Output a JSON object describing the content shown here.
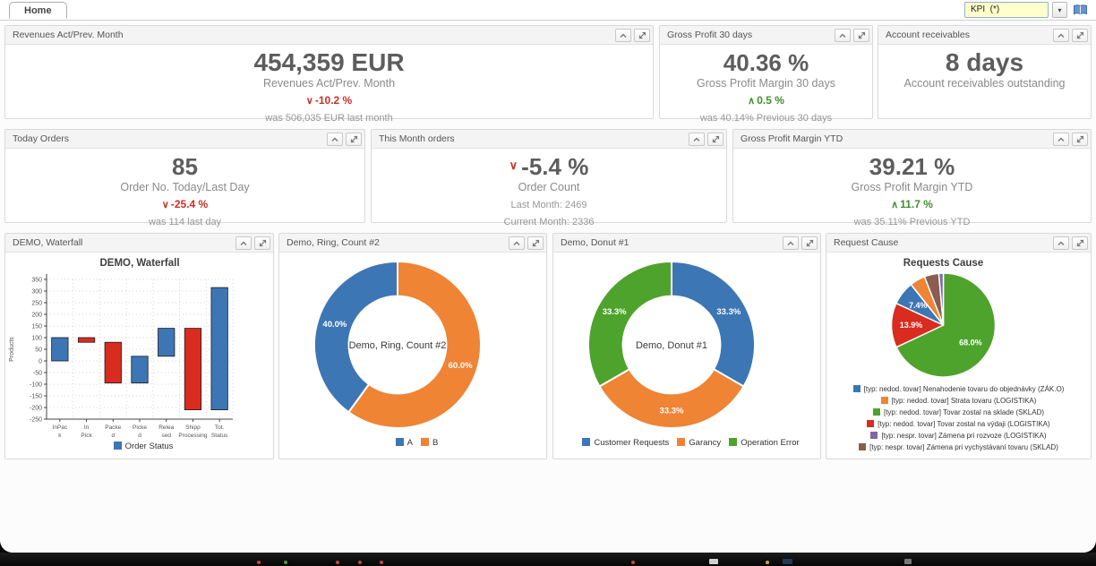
{
  "topbar": {
    "tab": "Home",
    "kpi_select": "KPI  (*)"
  },
  "cards": {
    "revenues": {
      "title": "Revenues Act/Prev. Month",
      "value": "454,359 EUR",
      "label": "Revenues Act/Prev. Month",
      "delta": "-10.2 %",
      "delta_dir": "down",
      "note": "was 506,035 EUR last month"
    },
    "gross30": {
      "title": "Gross Profit 30 days",
      "value": "40.36 %",
      "label": "Gross Profit Margin 30 days",
      "delta": "0.5 %",
      "delta_dir": "up",
      "note": "was 40.14% Previous 30 days"
    },
    "receivables": {
      "title": "Account receivables",
      "value": "8 days",
      "label": "Account receivables outstanding"
    },
    "today_orders": {
      "title": "Today Orders",
      "value": "85",
      "label": "Order No. Today/Last Day",
      "delta": "-25.4 %",
      "delta_dir": "down",
      "note": "was 114 last day"
    },
    "month_orders": {
      "title": "This Month orders",
      "value": "-5.4 %",
      "label": "Order Count",
      "line1": "Last Month: 2469",
      "line2": "Current Month: 2336",
      "delta_dir": "down"
    },
    "gross_ytd": {
      "title": "Gross Profit Margin YTD",
      "value": "39.21 %",
      "label": "Gross Profit Margin YTD",
      "delta": "11.7 %",
      "delta_dir": "up",
      "note": "was 35.11% Previous YTD"
    }
  },
  "palette": {
    "blue": "#3d76b4",
    "orange": "#ee8434",
    "green": "#4da32c",
    "red": "#d92b1f",
    "purple": "#7e68a8",
    "brown": "#8a5d50"
  },
  "chart_data": [
    {
      "id": "waterfall",
      "type": "bar",
      "panel_title": "DEMO, Waterfall",
      "title": "DEMO, Waterfall",
      "ylabel": "Products",
      "ylim": [
        -250,
        350
      ],
      "ytick_step": 50,
      "grid": true,
      "categories": [
        [
          "InPac",
          "k"
        ],
        [
          "In",
          "Pick"
        ],
        [
          "Packe",
          "d"
        ],
        [
          "Picke",
          "d"
        ],
        [
          "Relea",
          "sed"
        ],
        [
          "Shipp",
          "Processing"
        ],
        [
          "Tot.",
          "Status"
        ]
      ],
      "bars": [
        {
          "from": 0,
          "to": 100,
          "color": "blue"
        },
        {
          "from": 80,
          "to": 100,
          "color": "red"
        },
        {
          "from": -95,
          "to": 80,
          "color": "red"
        },
        {
          "from": -95,
          "to": 20,
          "color": "blue"
        },
        {
          "from": 20,
          "to": 140,
          "color": "blue"
        },
        {
          "from": -210,
          "to": 140,
          "color": "red"
        },
        {
          "from": -210,
          "to": 315,
          "color": "blue"
        }
      ],
      "legend_layout": "row",
      "legend": [
        {
          "label": "Order Status",
          "color": "blue"
        }
      ]
    },
    {
      "id": "ring2",
      "type": "pie",
      "donut": true,
      "panel_title": "Demo, Ring, Count #2",
      "center_label": "Demo, Ring, Count #2",
      "slices": [
        {
          "label": "B",
          "value": 60.0,
          "color": "orange",
          "pct_label": "60.0%"
        },
        {
          "label": "A",
          "value": 40.0,
          "color": "blue",
          "pct_label": "40.0%"
        }
      ],
      "legend_layout": "row",
      "legend": [
        {
          "label": "A",
          "color": "blue"
        },
        {
          "label": "B",
          "color": "orange"
        }
      ]
    },
    {
      "id": "donut1",
      "type": "pie",
      "donut": true,
      "panel_title": "Demo, Donut #1",
      "center_label": "Demo, Donut #1",
      "slices": [
        {
          "label": "Customer Requests",
          "value": 33.3,
          "color": "blue",
          "pct_label": "33.3%"
        },
        {
          "label": "Garancy",
          "value": 33.3,
          "color": "orange",
          "pct_label": "33.3%"
        },
        {
          "label": "Operation Error",
          "value": 33.3,
          "color": "green",
          "pct_label": "33.3%"
        }
      ],
      "legend_layout": "row",
      "legend": [
        {
          "label": "Customer Requests",
          "color": "blue"
        },
        {
          "label": "Garancy",
          "color": "orange"
        },
        {
          "label": "Operation Error",
          "color": "green"
        }
      ]
    },
    {
      "id": "requests_cause",
      "type": "pie",
      "donut": false,
      "panel_title": "Request Cause",
      "title": "Requests Cause",
      "slices": [
        {
          "label": "[typ: nedod. tovar] Tovar zostal na sklade (SKLAD)",
          "value": 68.0,
          "color": "green",
          "pct_label": "68.0%"
        },
        {
          "label": "[typ: nedod. tovar] Tovar zostal na výdaji (LOGISTIKA)",
          "value": 13.9,
          "color": "red",
          "pct_label": "13.9%"
        },
        {
          "label": "[typ: nedod. tovar] Nenahodenie tovaru do objednávky (ZÁK.O)",
          "value": 7.4,
          "color": "blue",
          "pct_label": "7.4%"
        },
        {
          "label": "[typ: nedod. tovar] Strata tovaru (LOGISTIKA)",
          "value": 4.8,
          "color": "orange"
        },
        {
          "label": "[typ: nespr. tovar] Zámena pri vychystávaní tovaru (SKLAD)",
          "value": 4.5,
          "color": "brown"
        },
        {
          "label": "[typ: nespr. tovar] Zámena pri rozvoze (LOGISTIKA)",
          "value": 1.4,
          "color": "purple"
        }
      ],
      "legend_layout": "column",
      "legend": [
        {
          "label": "[typ: nedod. tovar] Nenahodenie tovaru do objednávky (ZÁK.O)",
          "color": "blue"
        },
        {
          "label": "[typ: nedod. tovar] Strata tovaru (LOGISTIKA)",
          "color": "orange"
        },
        {
          "label": "[typ: nedod. tovar] Tovar zostal na sklade (SKLAD)",
          "color": "green"
        },
        {
          "label": "[typ: nedod. tovar] Tovar zostal na výdaji (LOGISTIKA)",
          "color": "red"
        },
        {
          "label": "[typ: nespr. tovar] Zámena pri rozvoze (LOGISTIKA)",
          "color": "purple"
        },
        {
          "label": "[typ: nespr. tovar] Zámena pri vychystávaní tovaru (SKLAD)",
          "color": "brown"
        }
      ]
    }
  ]
}
